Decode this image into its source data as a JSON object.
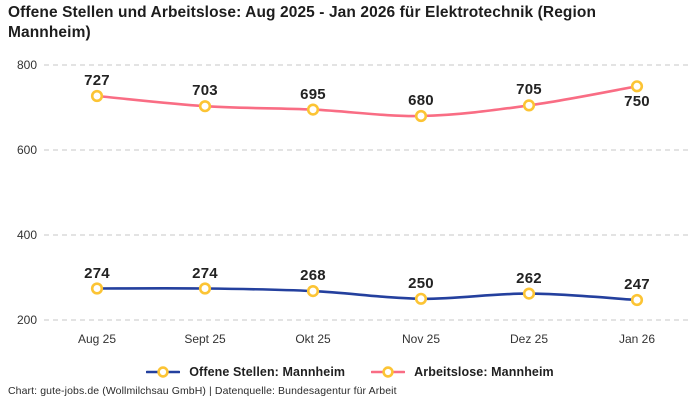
{
  "title": "Offene Stellen und Arbeitslose: Aug 2025 - Jan 2026 für Elektrotechnik (Region Mannheim)",
  "footer": "Chart: gute-jobs.de (Wollmilchsau GmbH) | Datenquelle: Bundesagentur für Arbeit",
  "chart_data": {
    "type": "line",
    "categories": [
      "Aug 25",
      "Sept 25",
      "Okt 25",
      "Nov 25",
      "Dez 25",
      "Jan 26"
    ],
    "series": [
      {
        "name": "Offene Stellen: Mannheim",
        "values": [
          274,
          274,
          268,
          250,
          262,
          247
        ],
        "color": "#24409E"
      },
      {
        "name": "Arbeitslose: Mannheim",
        "values": [
          727,
          703,
          695,
          680,
          705,
          750
        ],
        "color": "#F96D84"
      }
    ],
    "yticks": [
      800,
      600,
      400,
      200
    ],
    "ylim": [
      200,
      800
    ],
    "grid": "horizontal-dashed",
    "grid_color": "#C7C7C7",
    "legend_position": "bottom",
    "marker": {
      "shape": "circle",
      "fill": "#FFFFFF",
      "stroke": "#FCC434"
    },
    "data_labels": true,
    "label_color": "#222222"
  }
}
